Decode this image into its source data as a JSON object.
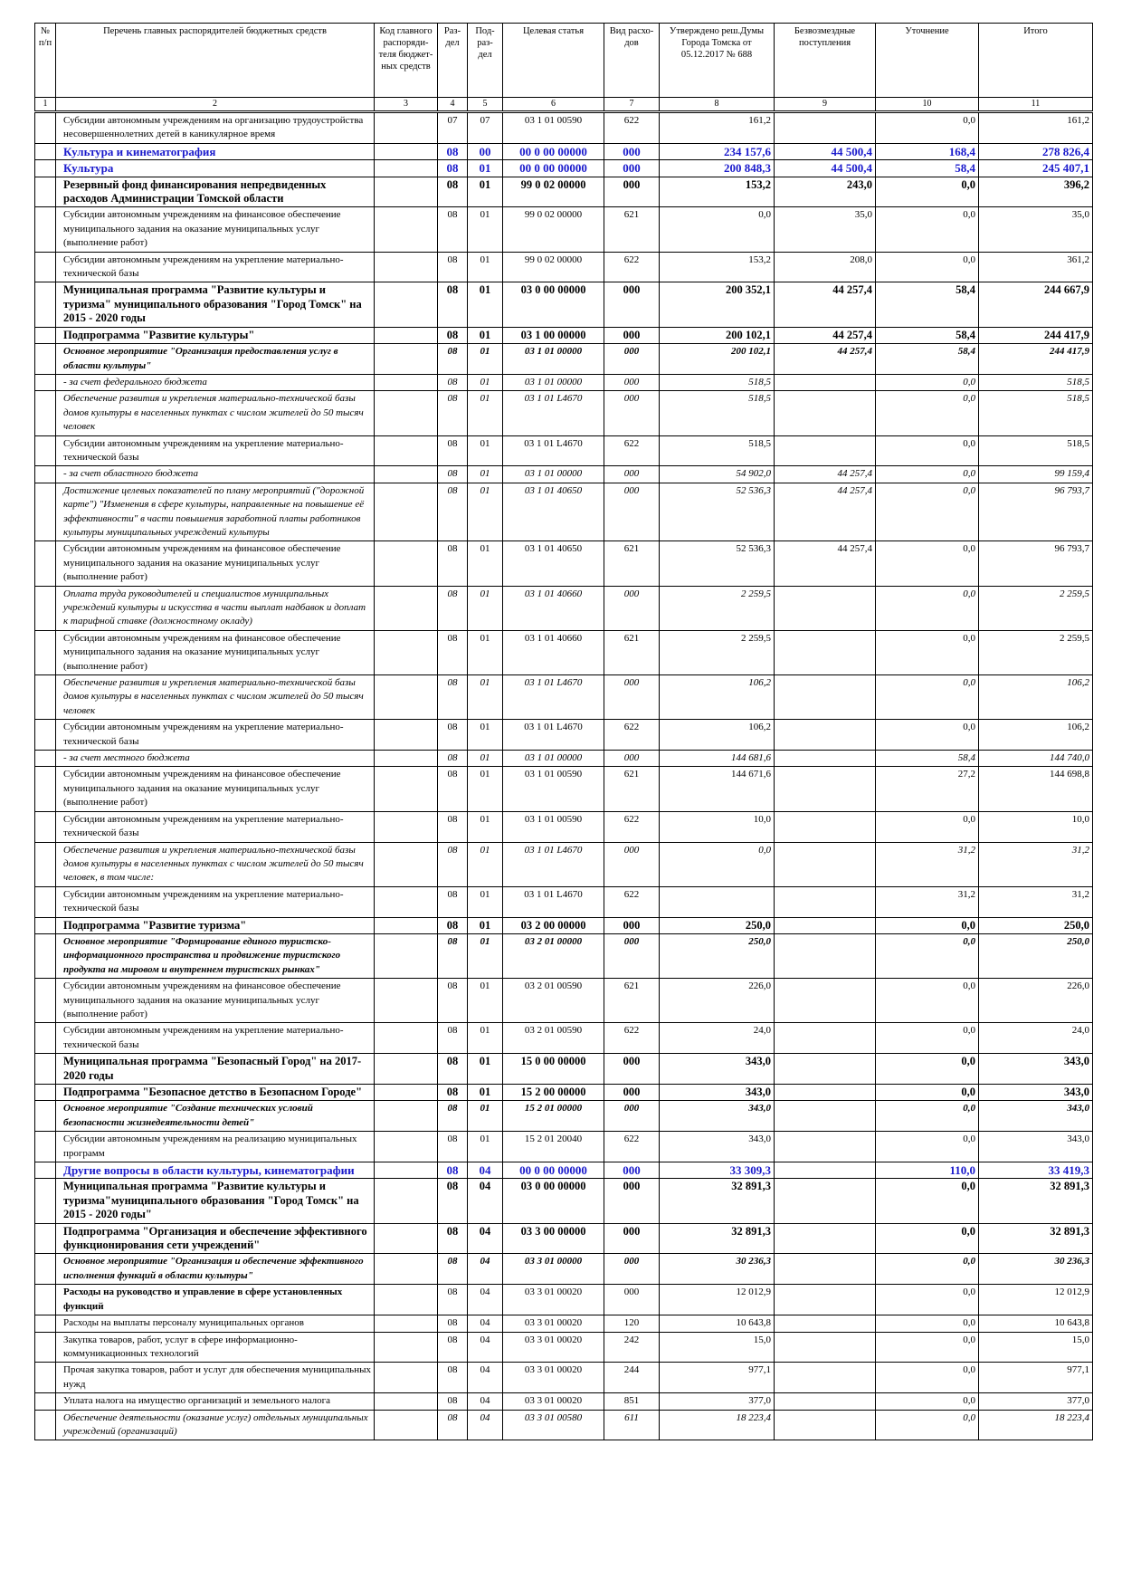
{
  "header": {
    "columns": [
      "№ п/п",
      "Перечень главных распорядителей бюджетных средств",
      "Код главного распоряди-теля бюджет-ных средств",
      "Раз-дел",
      "Под-раз-дел",
      "Целевая статья",
      "Вид расхо-дов",
      "Утверждено реш.Думы Города Томска от 05.12.2017 № 688",
      "Безвозмездные поступления",
      "Уточнение",
      "Итого"
    ],
    "numbers": [
      "1",
      "2",
      "3",
      "4",
      "5",
      "6",
      "7",
      "8",
      "9",
      "10",
      "11"
    ]
  },
  "table": {
    "rows": [
      {
        "style": "normal",
        "cells": [
          null,
          "Субсидии автономным учреждениям на организацию трудоустройства несовершеннолетних детей в каникулярное время",
          null,
          "07",
          "07",
          "03 1 01 00590",
          "622",
          "161,2",
          null,
          "0,0",
          "161,2"
        ]
      },
      {
        "style": "bold-blue",
        "cells": [
          null,
          "Культура и кинематография",
          null,
          "08",
          "00",
          "00 0 00 00000",
          "000",
          "234 157,6",
          "44 500,4",
          "168,4",
          "278 826,4"
        ]
      },
      {
        "style": "bold-blue",
        "cells": [
          null,
          "Культура",
          null,
          "08",
          "01",
          "00 0 00 00000",
          "000",
          "200 848,3",
          "44 500,4",
          "58,4",
          "245 407,1"
        ]
      },
      {
        "style": "bold",
        "cells": [
          null,
          "Резервный фонд финансирования непредвиденных расходов Администрации Томской области",
          null,
          "08",
          "01",
          "99 0 02 00000",
          "000",
          "153,2",
          "243,0",
          "0,0",
          "396,2"
        ]
      },
      {
        "style": "normal",
        "cells": [
          null,
          "Субсидии автономным учреждениям на финансовое обеспечение муниципального задания на оказание муниципальных услуг (выполнение работ)",
          null,
          "08",
          "01",
          "99 0 02 00000",
          "621",
          "0,0",
          "35,0",
          "0,0",
          "35,0"
        ]
      },
      {
        "style": "normal",
        "cells": [
          null,
          "Субсидии автономным учреждениям на укрепление материально-технической базы",
          null,
          "08",
          "01",
          "99 0 02 00000",
          "622",
          "153,2",
          "208,0",
          "0,0",
          "361,2"
        ]
      },
      {
        "style": "bold",
        "cells": [
          null,
          "Муниципальная программа \"Развитие культуры и туризма\" муниципального образования \"Город Томск\" на 2015 - 2020 годы",
          null,
          "08",
          "01",
          "03 0 00 00000",
          "000",
          "200 352,1",
          "44 257,4",
          "58,4",
          "244 667,9"
        ]
      },
      {
        "style": "bold",
        "cells": [
          null,
          "Подпрограмма \"Развитие культуры\"",
          null,
          "08",
          "01",
          "03 1 00 00000",
          "000",
          "200 102,1",
          "44 257,4",
          "58,4",
          "244 417,9"
        ]
      },
      {
        "style": "bold-italic",
        "cells": [
          null,
          "Основное мероприятие \"Организация предоставления услуг в области культуры\"",
          null,
          "08",
          "01",
          "03 1 01 00000",
          "000",
          "200 102,1",
          "44 257,4",
          "58,4",
          "244 417,9"
        ]
      },
      {
        "style": "italic",
        "cells": [
          null,
          "- за счет федерального бюджета",
          null,
          "08",
          "01",
          "03 1 01 00000",
          "000",
          "518,5",
          null,
          "0,0",
          "518,5"
        ]
      },
      {
        "style": "italic",
        "cells": [
          null,
          "Обеспечение развития и укрепления материально-технической базы домов культуры в населенных пунктах с числом жителей до 50 тысяч человек",
          null,
          "08",
          "01",
          "03 1 01 L4670",
          "000",
          "518,5",
          null,
          "0,0",
          "518,5"
        ]
      },
      {
        "style": "normal",
        "cells": [
          null,
          "Субсидии автономным учреждениям на укрепление материально-технической базы",
          null,
          "08",
          "01",
          "03 1 01 L4670",
          "622",
          "518,5",
          null,
          "0,0",
          "518,5"
        ]
      },
      {
        "style": "italic",
        "cells": [
          null,
          "- за счет областного бюджета",
          null,
          "08",
          "01",
          "03 1 01 00000",
          "000",
          "54 902,0",
          "44 257,4",
          "0,0",
          "99 159,4"
        ]
      },
      {
        "style": "italic",
        "cells": [
          null,
          "Достижение целевых показателей по плану мероприятий (\"дорожной карте\") \"Изменения в сфере культуры, направленные на повышение её эффективности\" в части повышения заработной платы работников культуры муниципальных учреждений культуры",
          null,
          "08",
          "01",
          "03 1 01 40650",
          "000",
          "52 536,3",
          "44 257,4",
          "0,0",
          "96 793,7"
        ]
      },
      {
        "style": "normal",
        "cells": [
          null,
          "Субсидии автономным учреждениям на финансовое обеспечение муниципального задания на оказание муниципальных услуг (выполнение работ)",
          null,
          "08",
          "01",
          "03 1 01 40650",
          "621",
          "52 536,3",
          "44 257,4",
          "0,0",
          "96 793,7"
        ]
      },
      {
        "style": "italic",
        "cells": [
          null,
          "Оплата труда руководителей и специалистов муниципальных учреждений культуры и искусства в части выплат надбавок и доплат к тарифной ставке (должностному окладу)",
          null,
          "08",
          "01",
          "03 1 01 40660",
          "000",
          "2 259,5",
          null,
          "0,0",
          "2 259,5"
        ]
      },
      {
        "style": "normal",
        "cells": [
          null,
          "Субсидии автономным учреждениям на финансовое обеспечение муниципального задания на оказание муниципальных услуг (выполнение работ)",
          null,
          "08",
          "01",
          "03 1 01 40660",
          "621",
          "2 259,5",
          null,
          "0,0",
          "2 259,5"
        ]
      },
      {
        "style": "italic",
        "cells": [
          null,
          "Обеспечение развития и укрепления материально-технической базы домов культуры в населенных пунктах с числом жителей до 50 тысяч человек",
          null,
          "08",
          "01",
          "03 1 01 L4670",
          "000",
          "106,2",
          null,
          "0,0",
          "106,2"
        ]
      },
      {
        "style": "normal",
        "cells": [
          null,
          "Субсидии автономным учреждениям на укрепление материально-технической базы",
          null,
          "08",
          "01",
          "03 1 01 L4670",
          "622",
          "106,2",
          null,
          "0,0",
          "106,2"
        ]
      },
      {
        "style": "italic",
        "cells": [
          null,
          "- за счет местного бюджета",
          null,
          "08",
          "01",
          "03 1 01 00000",
          "000",
          "144 681,6",
          null,
          "58,4",
          "144 740,0"
        ]
      },
      {
        "style": "normal",
        "cells": [
          null,
          "Субсидии автономным учреждениям на финансовое обеспечение муниципального задания на оказание муниципальных услуг (выполнение работ)",
          null,
          "08",
          "01",
          "03 1 01 00590",
          "621",
          "144 671,6",
          null,
          "27,2",
          "144 698,8"
        ]
      },
      {
        "style": "normal",
        "cells": [
          null,
          "Субсидии автономным учреждениям на укрепление материально-технической базы",
          null,
          "08",
          "01",
          "03 1 01 00590",
          "622",
          "10,0",
          null,
          "0,0",
          "10,0"
        ]
      },
      {
        "style": "italic",
        "cells": [
          null,
          "Обеспечение развития и укрепления материально-технической базы домов культуры в населенных пунктах с числом жителей до 50 тысяч человек, в том числе:",
          null,
          "08",
          "01",
          "03 1 01 L4670",
          "000",
          "0,0",
          null,
          "31,2",
          "31,2"
        ]
      },
      {
        "style": "normal",
        "cells": [
          null,
          "Субсидии автономным учреждениям на укрепление материально-технической базы",
          null,
          "08",
          "01",
          "03 1 01 L4670",
          "622",
          null,
          null,
          "31,2",
          "31,2"
        ]
      },
      {
        "style": "bold",
        "cells": [
          null,
          "Подпрограмма \"Развитие туризма\"",
          null,
          "08",
          "01",
          "03 2 00 00000",
          "000",
          "250,0",
          null,
          "0,0",
          "250,0"
        ]
      },
      {
        "style": "bold-italic",
        "cells": [
          null,
          "Основное мероприятие \"Формирование единого туристско-информационного пространства и продвижение туристского продукта на мировом и внутреннем туристских рынках\"",
          null,
          "08",
          "01",
          "03 2 01 00000",
          "000",
          "250,0",
          null,
          "0,0",
          "250,0"
        ]
      },
      {
        "style": "normal",
        "cells": [
          null,
          "Субсидии автономным учреждениям на финансовое обеспечение муниципального задания на оказание муниципальных услуг (выполнение работ)",
          null,
          "08",
          "01",
          "03 2 01 00590",
          "621",
          "226,0",
          null,
          "0,0",
          "226,0"
        ]
      },
      {
        "style": "normal",
        "cells": [
          null,
          "Субсидии автономным учреждениям на укрепление материально-технической базы",
          null,
          "08",
          "01",
          "03 2 01 00590",
          "622",
          "24,0",
          null,
          "0,0",
          "24,0"
        ]
      },
      {
        "style": "bold",
        "cells": [
          null,
          "Муниципальная программа \"Безопасный Город\" на 2017-2020 годы",
          null,
          "08",
          "01",
          "15 0 00 00000",
          "000",
          "343,0",
          null,
          "0,0",
          "343,0"
        ]
      },
      {
        "style": "bold",
        "cells": [
          null,
          "Подпрограмма \"Безопасное детство в Безопасном Городе\"",
          null,
          "08",
          "01",
          "15 2 00 00000",
          "000",
          "343,0",
          null,
          "0,0",
          "343,0"
        ]
      },
      {
        "style": "bold-italic",
        "cells": [
          null,
          "Основное мероприятие \"Создание технических условий безопасности жизнедеятельности детей\"",
          null,
          "08",
          "01",
          "15 2 01 00000",
          "000",
          "343,0",
          null,
          "0,0",
          "343,0"
        ]
      },
      {
        "style": "normal",
        "cells": [
          null,
          "Субсидии автономным учреждениям на реализацию муниципальных программ",
          null,
          "08",
          "01",
          "15 2 01 20040",
          "622",
          "343,0",
          null,
          "0,0",
          "343,0"
        ]
      },
      {
        "style": "bold-blue",
        "cells": [
          null,
          "Другие вопросы в области культуры, кинематографии",
          null,
          "08",
          "04",
          "00 0 00 00000",
          "000",
          "33 309,3",
          null,
          "110,0",
          "33 419,3"
        ]
      },
      {
        "style": "bold",
        "cells": [
          null,
          "Муниципальная программа \"Развитие культуры и туризма\"муниципального образования \"Город Томск\" на 2015 - 2020 годы\"",
          null,
          "08",
          "04",
          "03 0 00 00000",
          "000",
          "32 891,3",
          null,
          "0,0",
          "32 891,3"
        ]
      },
      {
        "style": "bold",
        "cells": [
          null,
          "Подпрограмма \"Организация и обеспечение эффективного функционирования сети учреждений\"",
          null,
          "08",
          "04",
          "03 3 00 00000",
          "000",
          "32 891,3",
          null,
          "0,0",
          "32 891,3"
        ]
      },
      {
        "style": "bold-italic",
        "cells": [
          null,
          "Основное мероприятие \"Организация и обеспечение эффективного исполнения функций в области культуры\"",
          null,
          "08",
          "04",
          "03 3 01 00000",
          "000",
          "30 236,3",
          null,
          "0,0",
          "30 236,3"
        ]
      },
      {
        "style": "bold-name",
        "cells": [
          null,
          "Расходы на руководство и управление в сфере установленных функций",
          null,
          "08",
          "04",
          "03 3 01 00020",
          "000",
          "12 012,9",
          null,
          "0,0",
          "12 012,9"
        ]
      },
      {
        "style": "normal",
        "cells": [
          null,
          "Расходы на выплаты персоналу муниципальных органов",
          null,
          "08",
          "04",
          "03 3 01 00020",
          "120",
          "10 643,8",
          null,
          "0,0",
          "10 643,8"
        ]
      },
      {
        "style": "normal",
        "cells": [
          null,
          "Закупка товаров, работ, услуг в сфере информационно-коммуникационных технологий",
          null,
          "08",
          "04",
          "03 3 01 00020",
          "242",
          "15,0",
          null,
          "0,0",
          "15,0"
        ]
      },
      {
        "style": "normal",
        "cells": [
          null,
          "Прочая закупка товаров, работ и услуг для обеспечения муниципальных нужд",
          null,
          "08",
          "04",
          "03 3 01 00020",
          "244",
          "977,1",
          null,
          "0,0",
          "977,1"
        ]
      },
      {
        "style": "normal",
        "cells": [
          null,
          "Уплата налога на имущество организаций и земельного налога",
          null,
          "08",
          "04",
          "03 3 01 00020",
          "851",
          "377,0",
          null,
          "0,0",
          "377,0"
        ]
      },
      {
        "style": "italic",
        "cells": [
          null,
          "Обеспечение деятельности (оказание услуг) отдельных муниципальных учреждений (организаций)",
          null,
          "08",
          "04",
          "03 3 01 00580",
          "611",
          "18 223,4",
          null,
          "0,0",
          "18 223,4"
        ]
      }
    ]
  }
}
